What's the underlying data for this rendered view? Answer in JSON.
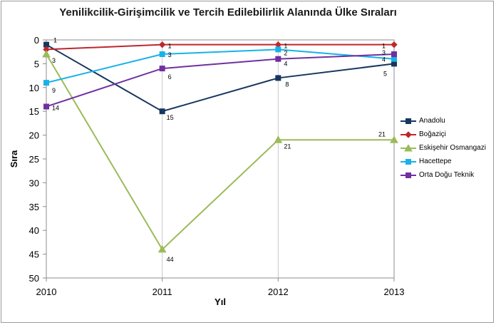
{
  "title": "Yenilikcilik-Girişimcilik ve Tercih Edilebilirlik Alanında Ülke Sıraları",
  "chart_data": {
    "type": "line",
    "title": "Yenilikcilik-Girişimcilik ve Tercih Edilebilirlik Alanında Ülke Sıraları",
    "xlabel": "Yıl",
    "ylabel": "Sıra",
    "x": [
      2010,
      2011,
      2012,
      2013
    ],
    "x_tick_labels": [
      "2010",
      "2011",
      "2012",
      "2013"
    ],
    "y_tick_labels": [
      "0",
      "5",
      "10",
      "15",
      "20",
      "25",
      "30",
      "35",
      "40",
      "45",
      "50"
    ],
    "ylim": [
      0,
      50
    ],
    "y_reversed": true,
    "grid": "vertical",
    "legend": "right",
    "series": [
      {
        "name": "Anadolu",
        "color": "#17375e",
        "marker": "square",
        "values": [
          1,
          15,
          8,
          5
        ],
        "labels": [
          "1",
          "15",
          "8",
          "5"
        ]
      },
      {
        "name": "Boğaziçi",
        "color": "#c0262d",
        "marker": "diamond",
        "values": [
          2,
          1,
          1,
          1
        ],
        "labels": [
          "",
          "1",
          "1",
          "1"
        ]
      },
      {
        "name": "Eskişehir Osmangazi",
        "color": "#9bbb59",
        "marker": "triangle",
        "values": [
          3,
          44,
          21,
          21
        ],
        "labels": [
          "3",
          "44",
          "21",
          "21"
        ]
      },
      {
        "name": "Hacettepe",
        "color": "#17b2e8",
        "marker": "square",
        "values": [
          9,
          3,
          2,
          4
        ],
        "labels": [
          "9",
          "3",
          "2",
          "4"
        ]
      },
      {
        "name": "Orta Doğu Teknik",
        "color": "#7030a0",
        "marker": "square",
        "values": [
          14,
          6,
          4,
          3
        ],
        "labels": [
          "14",
          "6",
          "4",
          "3"
        ]
      }
    ]
  }
}
